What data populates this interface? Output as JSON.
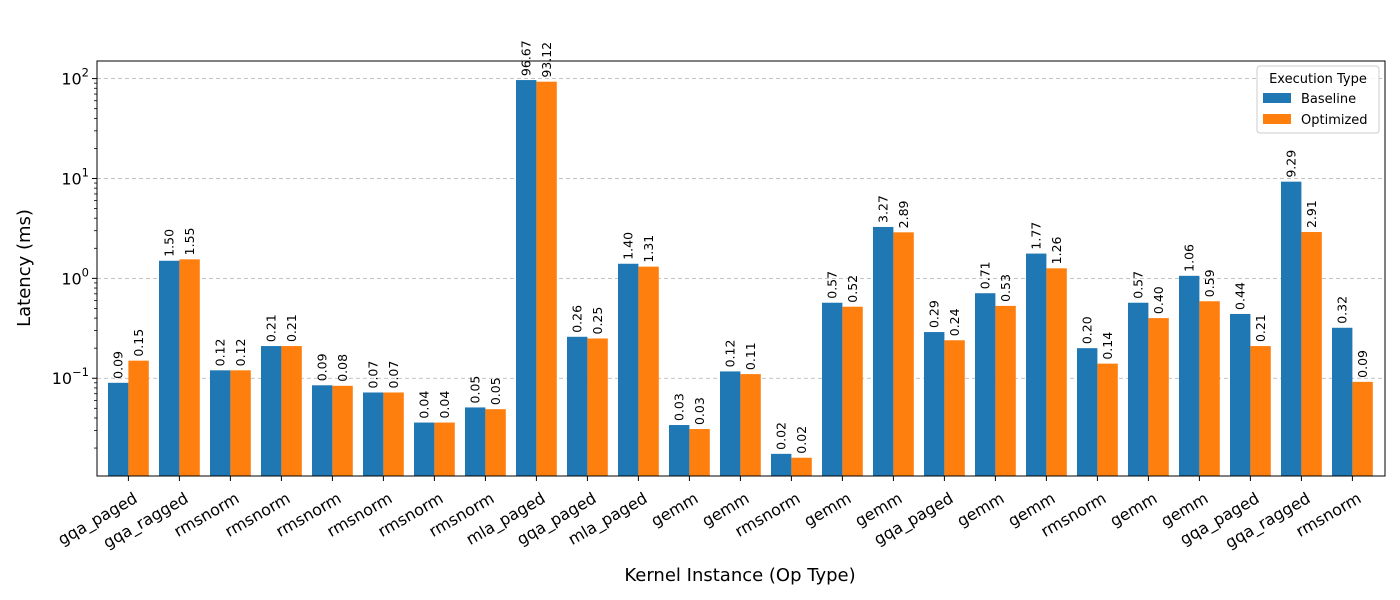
{
  "chart_data": {
    "type": "bar",
    "scale": "log",
    "title": "",
    "xlabel": "Kernel Instance (Op Type)",
    "ylabel": "Latency (ms)",
    "ylim": [
      0.0105,
      150
    ],
    "yticks": [
      {
        "value": 0.1,
        "base": "10",
        "exp": "−1"
      },
      {
        "value": 1,
        "base": "10",
        "exp": "0"
      },
      {
        "value": 10,
        "base": "10",
        "exp": "1"
      },
      {
        "value": 100,
        "base": "10",
        "exp": "2"
      }
    ],
    "grid": "y-dashed",
    "categories": [
      "gqa_paged",
      "gqa_ragged",
      "rmsnorm",
      "rmsnorm",
      "rmsnorm",
      "rmsnorm",
      "rmsnorm",
      "rmsnorm",
      "mla_paged",
      "gqa_paged",
      "mla_paged",
      "gemm",
      "gemm",
      "rmsnorm",
      "gemm",
      "gemm",
      "gqa_paged",
      "gemm",
      "gemm",
      "rmsnorm",
      "gemm",
      "gemm",
      "gqa_paged",
      "gqa_ragged",
      "rmsnorm"
    ],
    "legend": {
      "title": "Execution Type",
      "position": "top-right"
    },
    "series": [
      {
        "name": "Baseline",
        "color": "#1f77b4",
        "values": [
          0.09,
          1.5,
          0.12,
          0.21,
          0.085,
          0.072,
          0.036,
          0.051,
          96.67,
          0.26,
          1.4,
          0.034,
          0.117,
          0.0175,
          0.57,
          3.27,
          0.29,
          0.71,
          1.77,
          0.2,
          0.57,
          1.06,
          0.44,
          9.29,
          0.32
        ],
        "labels": [
          "0.09",
          "1.50",
          "0.12",
          "0.21",
          "0.09",
          "0.07",
          "0.04",
          "0.05",
          "96.67",
          "0.26",
          "1.40",
          "0.03",
          "0.12",
          "0.02",
          "0.57",
          "3.27",
          "0.29",
          "0.71",
          "1.77",
          "0.20",
          "0.57",
          "1.06",
          "0.44",
          "9.29",
          "0.32"
        ]
      },
      {
        "name": "Optimized",
        "color": "#ff7f0e",
        "values": [
          0.15,
          1.55,
          0.12,
          0.21,
          0.084,
          0.072,
          0.036,
          0.049,
          93.12,
          0.25,
          1.31,
          0.031,
          0.11,
          0.016,
          0.52,
          2.89,
          0.24,
          0.53,
          1.26,
          0.14,
          0.4,
          0.59,
          0.21,
          2.91,
          0.092
        ],
        "labels": [
          "0.15",
          "1.55",
          "0.12",
          "0.21",
          "0.08",
          "0.07",
          "0.04",
          "0.05",
          "93.12",
          "0.25",
          "1.31",
          "0.03",
          "0.11",
          "0.02",
          "0.52",
          "2.89",
          "0.24",
          "0.53",
          "1.26",
          "0.14",
          "0.40",
          "0.59",
          "0.21",
          "2.91",
          "0.09"
        ]
      }
    ]
  }
}
